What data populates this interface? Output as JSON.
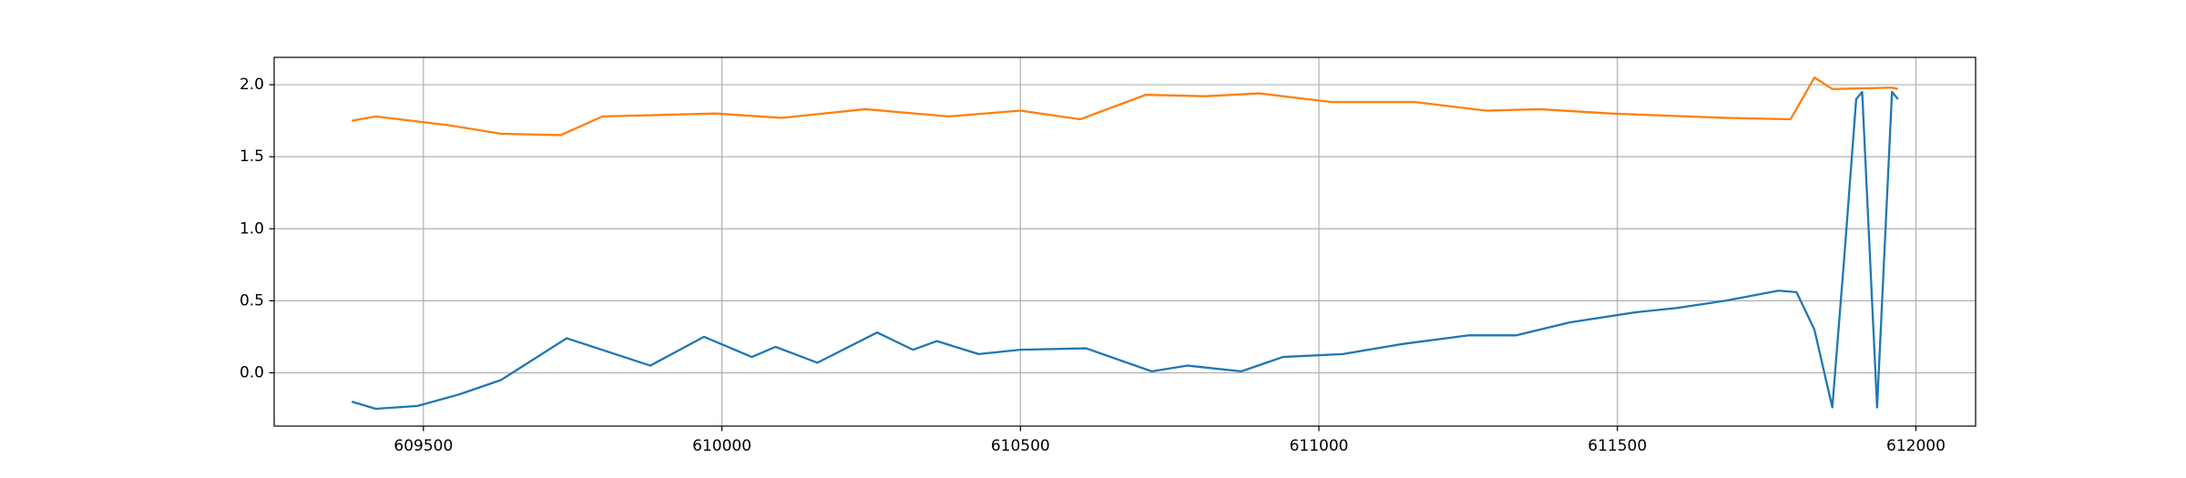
{
  "chart_data": {
    "type": "line",
    "series": [
      {
        "color": "#1f77b4",
        "x": [
          609380,
          609420,
          609490,
          609560,
          609630,
          609740,
          609880,
          609970,
          610050,
          610090,
          610160,
          610260,
          610320,
          610360,
          610430,
          610500,
          610610,
          610720,
          610780,
          610870,
          610940,
          611040,
          611140,
          611250,
          611330,
          611420,
          611530,
          611600,
          611680,
          611770,
          611800,
          611830,
          611860,
          611880,
          611900,
          611910,
          611935,
          611960,
          611970
        ],
        "values": [
          -0.2,
          -0.25,
          -0.23,
          -0.15,
          -0.05,
          0.24,
          0.05,
          0.25,
          0.11,
          0.18,
          0.07,
          0.28,
          0.16,
          0.22,
          0.13,
          0.16,
          0.17,
          0.01,
          0.05,
          0.01,
          0.11,
          0.13,
          0.2,
          0.26,
          0.26,
          0.35,
          0.42,
          0.45,
          0.5,
          0.57,
          0.56,
          0.3,
          -0.24,
          0.8,
          1.9,
          1.95,
          -0.24,
          1.95,
          1.9
        ]
      },
      {
        "color": "#ff7f0e",
        "x": [
          609380,
          609420,
          609540,
          609630,
          609730,
          609800,
          609990,
          610100,
          610240,
          610380,
          610500,
          610600,
          610710,
          610810,
          610900,
          611020,
          611160,
          611280,
          611370,
          611490,
          611680,
          611790,
          611830,
          611860,
          611960,
          611970
        ],
        "values": [
          1.75,
          1.78,
          1.72,
          1.66,
          1.65,
          1.78,
          1.8,
          1.77,
          1.83,
          1.78,
          1.82,
          1.76,
          1.93,
          1.92,
          1.94,
          1.88,
          1.88,
          1.82,
          1.83,
          1.8,
          1.77,
          1.76,
          2.05,
          1.97,
          1.98,
          1.97
        ]
      }
    ],
    "xlim": [
      609250,
      612100
    ],
    "xticks": [
      609500,
      610000,
      610500,
      611000,
      611500,
      612000
    ],
    "ylim": [
      -0.37,
      2.19
    ],
    "yticks": [
      {
        "value": 0,
        "label": "0.0"
      },
      0.5,
      {
        "value": 1,
        "label": "1.0"
      },
      1.5,
      {
        "value": 2,
        "label": "2.0"
      }
    ],
    "grid": true
  }
}
